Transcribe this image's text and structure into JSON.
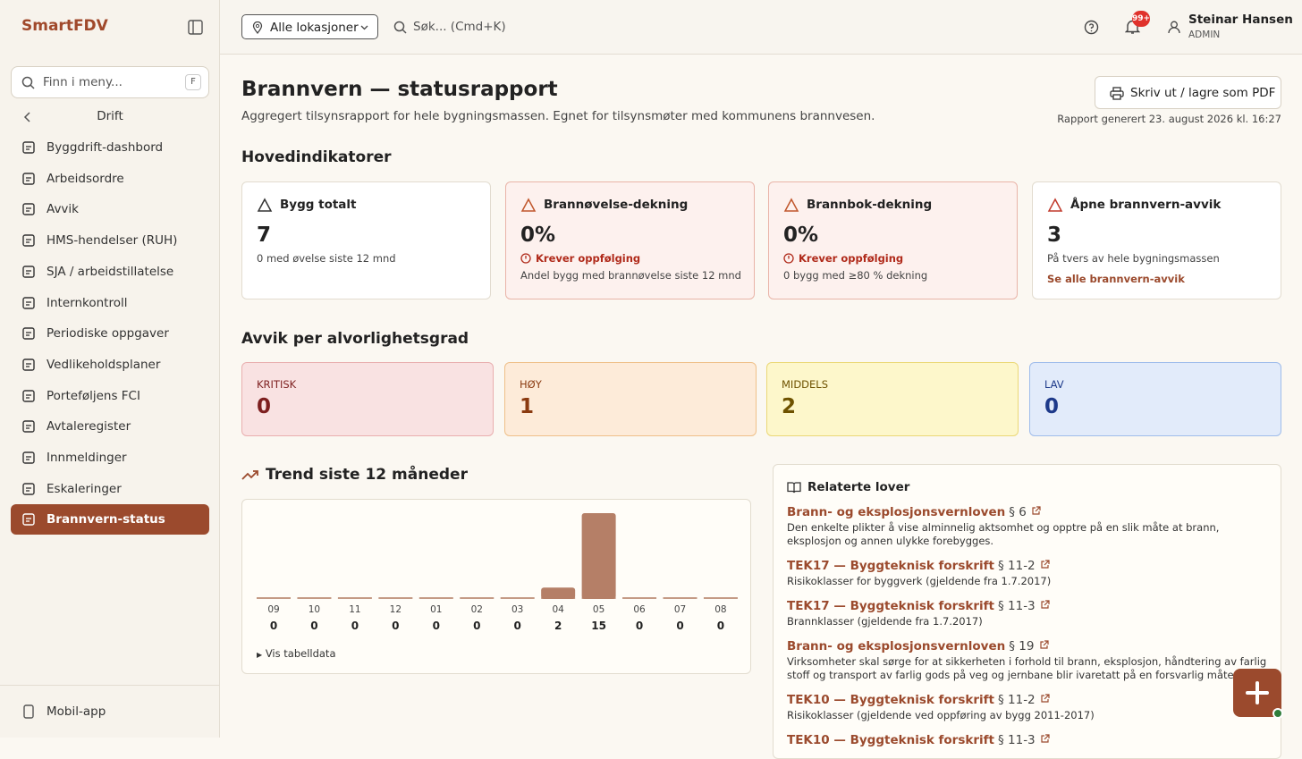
{
  "app": {
    "brand": "SmartFDV",
    "menu_search": "Finn i meny...",
    "menu_shortcut": "F",
    "section": "Drift",
    "menu": [
      "Byggdrift-dashbord",
      "Arbeidsordre",
      "Avvik",
      "HMS-hendelser (RUH)",
      "SJA / arbeidstillatelse",
      "Internkontroll",
      "Periodiske oppgaver",
      "Vedlikeholdsplaner",
      "Porteføljens FCI",
      "Avtaleregister",
      "Innmeldinger",
      "Eskaleringer",
      "Brannvern-status"
    ],
    "footer_item": "Mobil-app"
  },
  "topbar": {
    "location": "Alle lokasjoner",
    "search": "Søk... (Cmd+K)",
    "badge": "99+",
    "user_name": "Steinar Hansen",
    "user_role": "ADMIN"
  },
  "header": {
    "title": "Brannvern — statusrapport",
    "subtitle": "Aggregert tilsynsrapport for hele bygningsmassen. Egnet for tilsynsmøter med kommunens brannvesen.",
    "print_button": "Skriv ut / lagre som PDF",
    "generated": "Rapport generert 23. august 2026 kl. 16:27"
  },
  "kpi": {
    "title": "Hovedindikatorer",
    "cards": [
      {
        "label": "Bygg totalt",
        "value": "7",
        "note": "0 med øvelse siste 12 mnd"
      },
      {
        "label": "Brannøvelse-dekning",
        "value": "0%",
        "warning": "Krever oppfølging",
        "note": "Andel bygg med brannøvelse siste 12 mnd"
      },
      {
        "label": "Brannbok-dekning",
        "value": "0%",
        "warning": "Krever oppfølging",
        "note": "0 bygg med ≥80 % dekning"
      },
      {
        "label": "Åpne brannvern-avvik",
        "value": "3",
        "note": "På tvers av hele bygningsmassen",
        "link": "Se alle brannvern-avvik"
      }
    ]
  },
  "severity": {
    "title": "Avvik per alvorlighetsgrad",
    "cards": [
      {
        "label": "KRITISK",
        "value": "0"
      },
      {
        "label": "HØY",
        "value": "1"
      },
      {
        "label": "MIDDELS",
        "value": "2"
      },
      {
        "label": "LAV",
        "value": "0"
      }
    ]
  },
  "trend": {
    "title": "Trend siste 12 måneder",
    "categories": [
      "09",
      "10",
      "11",
      "12",
      "01",
      "02",
      "03",
      "04",
      "05",
      "06",
      "07",
      "08"
    ],
    "values": [
      0,
      0,
      0,
      0,
      0,
      0,
      0,
      2,
      15,
      0,
      0,
      0
    ],
    "toggle": "Vis tabelldata"
  },
  "laws": {
    "title": "Relaterte lover",
    "items": [
      {
        "name": "Brann- og eksplosjonsvernloven",
        "section": "§ 6",
        "desc": "Den enkelte plikter å vise alminnelig aktsomhet og opptre på en slik måte at brann, eksplosjon og annen ulykke forebygges."
      },
      {
        "name": "TEK17 — Byggteknisk forskrift",
        "section": "§ 11-2",
        "desc": "Risikoklasser for byggverk (gjeldende fra 1.7.2017)"
      },
      {
        "name": "TEK17 — Byggteknisk forskrift",
        "section": "§ 11-3",
        "desc": "Brannklasser (gjeldende fra 1.7.2017)"
      },
      {
        "name": "Brann- og eksplosjonsvernloven",
        "section": "§ 19",
        "desc": "Virksomheter skal sørge for at sikkerheten i forhold til brann, eksplosjon, håndtering av farlig stoff og transport av farlig gods på veg og jernbane blir ivaretatt på en forsvarlig måte."
      },
      {
        "name": "TEK10 — Byggteknisk forskrift",
        "section": "§ 11-2",
        "desc": "Risikoklasser (gjeldende ved oppføring av bygg 2011-2017)"
      },
      {
        "name": "TEK10 — Byggteknisk forskrift",
        "section": "§ 11-3",
        "desc": ""
      }
    ]
  }
}
